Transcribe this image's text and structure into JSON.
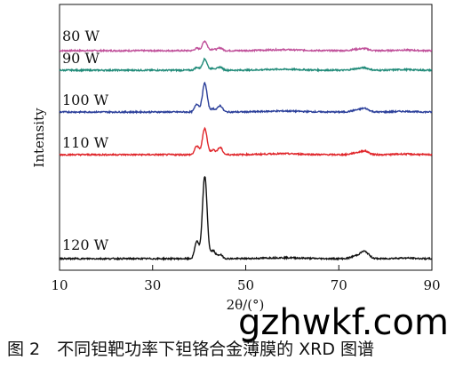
{
  "chart_data": {
    "type": "line",
    "xlabel": "2θ/(°)",
    "ylabel": "Intensity",
    "xlim": [
      10,
      90
    ],
    "x_ticks": [
      10,
      30,
      50,
      70,
      90
    ],
    "x_tick_labels": [
      "10",
      "30",
      "50",
      "70",
      "90"
    ],
    "grid": false,
    "legend": "none",
    "peaks_2theta": [
      39.5,
      41.2,
      43.0,
      44.5,
      73.5,
      75.5
    ],
    "series": [
      {
        "name": "80 W",
        "color": "#c0509a",
        "peak_heights": [
          0.3,
          1.2,
          0.2,
          0.35,
          0.15,
          0.25
        ]
      },
      {
        "name": "90 W",
        "color": "#1f8a78",
        "peak_heights": [
          0.35,
          1.4,
          0.25,
          0.4,
          0.15,
          0.3
        ]
      },
      {
        "name": "100 W",
        "color": "#2b3f9a",
        "peak_heights": [
          1.0,
          3.6,
          0.4,
          0.8,
          0.2,
          0.45
        ]
      },
      {
        "name": "110 W",
        "color": "#e0262b",
        "peak_heights": [
          1.1,
          3.3,
          0.6,
          0.9,
          0.2,
          0.45
        ]
      },
      {
        "name": "120 W",
        "color": "#111111",
        "peak_heights": [
          2.2,
          10.3,
          1.0,
          0.5,
          0.3,
          0.9
        ]
      }
    ]
  },
  "caption": "图 2　不同钽靶功率下钽铬合金薄膜的 XRD 图谱",
  "watermark": "gzhwkf.com"
}
